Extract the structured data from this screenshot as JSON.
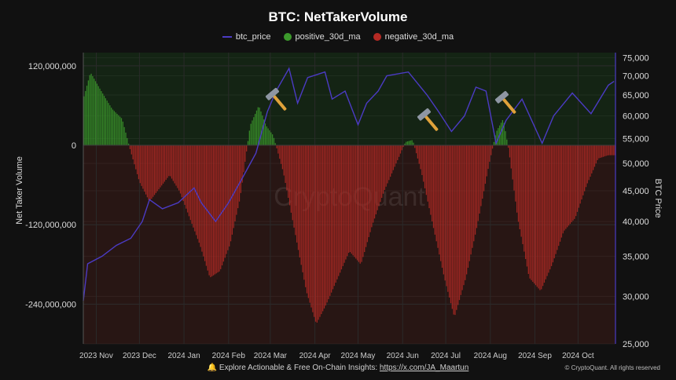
{
  "chart_data": {
    "type": "bar",
    "title": "BTC: NetTakerVolume",
    "ylabel": "Net Taker Volume",
    "y2label": "BTC Price",
    "ylim": [
      -300000000,
      140000000
    ],
    "y_ticks": [
      "120,000,000",
      "0",
      "-120,000,000",
      "-240,000,000"
    ],
    "y2_scale": "log",
    "y2_ticks": [
      "75,000",
      "70,000",
      "65,000",
      "60,000",
      "55,000",
      "50,000",
      "45,000",
      "40,000",
      "35,000",
      "30,000",
      "25,000"
    ],
    "x_ticks": [
      "2023 Nov",
      "2023 Dec",
      "2024 Jan",
      "2024 Feb",
      "2024 Mar",
      "2024 Apr",
      "2024 May",
      "2024 Jun",
      "2024 Jul",
      "2024 Aug",
      "2024 Sep",
      "2024 Oct"
    ],
    "legend": [
      {
        "name": "btc_price",
        "color": "#4b3bc4",
        "shape": "line"
      },
      {
        "name": "positive_30d_ma",
        "color": "#3c9a2c",
        "shape": "dot"
      },
      {
        "name": "negative_30d_ma",
        "color": "#b52a24",
        "shape": "dot"
      }
    ],
    "net_taker_volume_30d_ma_millions": [
      {
        "date": "2023-10-23",
        "value": 70
      },
      {
        "date": "2023-10-28",
        "value": 110
      },
      {
        "date": "2023-11-05",
        "value": 80
      },
      {
        "date": "2023-11-12",
        "value": 55
      },
      {
        "date": "2023-11-19",
        "value": 40
      },
      {
        "date": "2023-11-25",
        "value": -10
      },
      {
        "date": "2023-12-01",
        "value": -55
      },
      {
        "date": "2023-12-08",
        "value": -85
      },
      {
        "date": "2023-12-15",
        "value": -65
      },
      {
        "date": "2023-12-22",
        "value": -45
      },
      {
        "date": "2023-12-29",
        "value": -70
      },
      {
        "date": "2024-01-05",
        "value": -110
      },
      {
        "date": "2024-01-12",
        "value": -150
      },
      {
        "date": "2024-01-19",
        "value": -200
      },
      {
        "date": "2024-01-26",
        "value": -190
      },
      {
        "date": "2024-02-02",
        "value": -150
      },
      {
        "date": "2024-02-09",
        "value": -80
      },
      {
        "date": "2024-02-16",
        "value": 30
      },
      {
        "date": "2024-02-22",
        "value": 60
      },
      {
        "date": "2024-02-27",
        "value": 30
      },
      {
        "date": "2024-03-03",
        "value": 15
      },
      {
        "date": "2024-03-10",
        "value": -40
      },
      {
        "date": "2024-03-18",
        "value": -130
      },
      {
        "date": "2024-03-26",
        "value": -220
      },
      {
        "date": "2024-04-02",
        "value": -270
      },
      {
        "date": "2024-04-09",
        "value": -240
      },
      {
        "date": "2024-04-17",
        "value": -200
      },
      {
        "date": "2024-04-25",
        "value": -160
      },
      {
        "date": "2024-05-03",
        "value": -180
      },
      {
        "date": "2024-05-11",
        "value": -120
      },
      {
        "date": "2024-05-19",
        "value": -70
      },
      {
        "date": "2024-05-27",
        "value": -30
      },
      {
        "date": "2024-06-03",
        "value": 5
      },
      {
        "date": "2024-06-08",
        "value": 8
      },
      {
        "date": "2024-06-14",
        "value": -40
      },
      {
        "date": "2024-06-22",
        "value": -120
      },
      {
        "date": "2024-06-30",
        "value": -200
      },
      {
        "date": "2024-07-07",
        "value": -260
      },
      {
        "date": "2024-07-15",
        "value": -200
      },
      {
        "date": "2024-07-23",
        "value": -120
      },
      {
        "date": "2024-07-31",
        "value": -30
      },
      {
        "date": "2024-08-05",
        "value": 20
      },
      {
        "date": "2024-08-10",
        "value": 40
      },
      {
        "date": "2024-08-14",
        "value": -10
      },
      {
        "date": "2024-08-20",
        "value": -110
      },
      {
        "date": "2024-08-28",
        "value": -200
      },
      {
        "date": "2024-09-05",
        "value": -220
      },
      {
        "date": "2024-09-13",
        "value": -180
      },
      {
        "date": "2024-09-21",
        "value": -130
      },
      {
        "date": "2024-09-29",
        "value": -110
      },
      {
        "date": "2024-10-07",
        "value": -60
      },
      {
        "date": "2024-10-15",
        "value": -20
      },
      {
        "date": "2024-10-22",
        "value": -15
      }
    ],
    "btc_price": [
      {
        "date": "2023-10-23",
        "value": 29500
      },
      {
        "date": "2023-10-26",
        "value": 34000
      },
      {
        "date": "2023-11-05",
        "value": 35000
      },
      {
        "date": "2023-11-15",
        "value": 36500
      },
      {
        "date": "2023-11-25",
        "value": 37500
      },
      {
        "date": "2023-12-03",
        "value": 40000
      },
      {
        "date": "2023-12-08",
        "value": 43500
      },
      {
        "date": "2023-12-17",
        "value": 42000
      },
      {
        "date": "2023-12-28",
        "value": 43000
      },
      {
        "date": "2024-01-08",
        "value": 45500
      },
      {
        "date": "2024-01-13",
        "value": 43000
      },
      {
        "date": "2024-01-23",
        "value": 40000
      },
      {
        "date": "2024-02-01",
        "value": 43000
      },
      {
        "date": "2024-02-10",
        "value": 47000
      },
      {
        "date": "2024-02-20",
        "value": 52000
      },
      {
        "date": "2024-02-28",
        "value": 61000
      },
      {
        "date": "2024-03-05",
        "value": 66000
      },
      {
        "date": "2024-03-14",
        "value": 72000
      },
      {
        "date": "2024-03-20",
        "value": 63000
      },
      {
        "date": "2024-03-27",
        "value": 69500
      },
      {
        "date": "2024-04-08",
        "value": 71000
      },
      {
        "date": "2024-04-13",
        "value": 64000
      },
      {
        "date": "2024-04-22",
        "value": 66000
      },
      {
        "date": "2024-05-01",
        "value": 58000
      },
      {
        "date": "2024-05-07",
        "value": 63000
      },
      {
        "date": "2024-05-15",
        "value": 66000
      },
      {
        "date": "2024-05-21",
        "value": 70000
      },
      {
        "date": "2024-06-05",
        "value": 71000
      },
      {
        "date": "2024-06-18",
        "value": 65000
      },
      {
        "date": "2024-06-26",
        "value": 61000
      },
      {
        "date": "2024-07-05",
        "value": 56500
      },
      {
        "date": "2024-07-14",
        "value": 60000
      },
      {
        "date": "2024-07-22",
        "value": 67000
      },
      {
        "date": "2024-07-29",
        "value": 66000
      },
      {
        "date": "2024-08-05",
        "value": 54000
      },
      {
        "date": "2024-08-12",
        "value": 59000
      },
      {
        "date": "2024-08-23",
        "value": 64000
      },
      {
        "date": "2024-09-06",
        "value": 54000
      },
      {
        "date": "2024-09-14",
        "value": 60000
      },
      {
        "date": "2024-09-27",
        "value": 65500
      },
      {
        "date": "2024-10-10",
        "value": 60500
      },
      {
        "date": "2024-10-22",
        "value": 67500
      },
      {
        "date": "2024-10-26",
        "value": 68500
      }
    ],
    "annotations": [
      "hammer-icon",
      "hammer-icon",
      "hammer-icon"
    ],
    "watermark": "CryptoQuant",
    "colors": {
      "background": "#111111",
      "positive_zone": "#142414",
      "negative_zone": "#281614",
      "positive_bar": "#3c9a2c",
      "negative_bar": "#b52a24",
      "price_line": "#4b3bc4"
    }
  },
  "footer": {
    "prefix": "Explore Actionable & Free On-Chain Insights:",
    "link": "https://x.com/JA_Maartun",
    "copyright": "© CryptoQuant. All rights reserved"
  }
}
